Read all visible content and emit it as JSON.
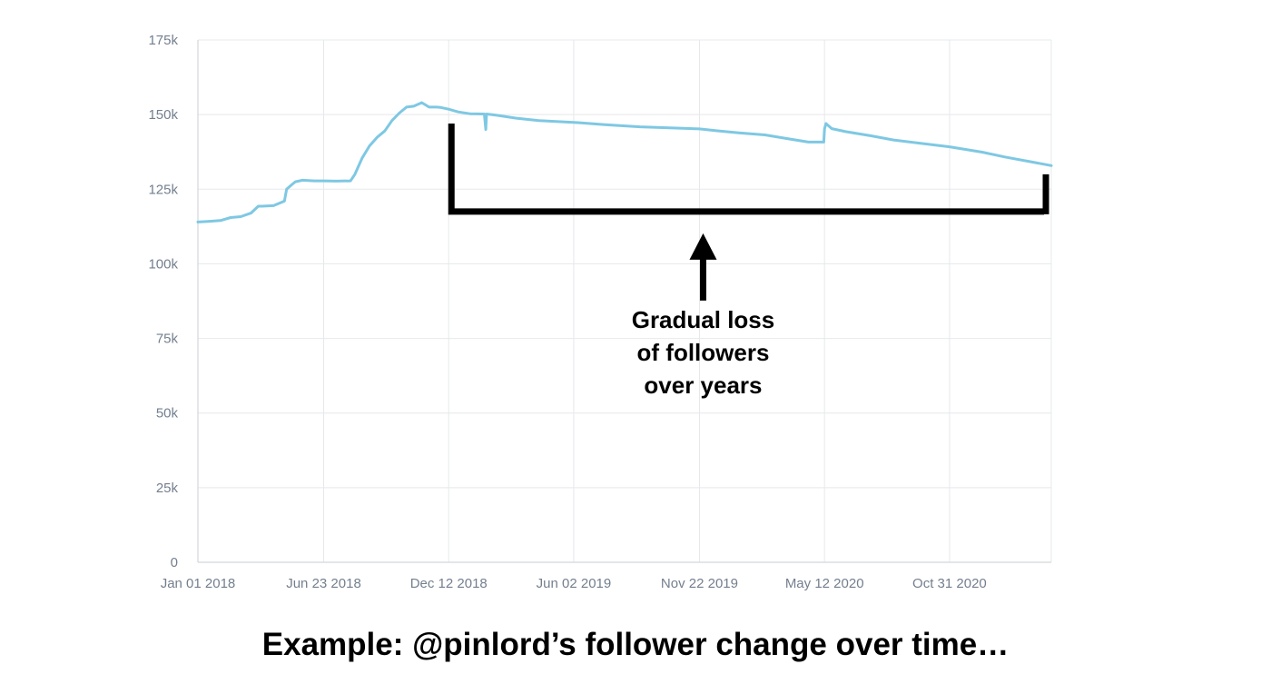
{
  "chart_data": {
    "type": "line",
    "title": "",
    "xlabel": "",
    "ylabel": "",
    "ylim": [
      0,
      175000
    ],
    "y_tick_values": [
      0,
      25000,
      50000,
      75000,
      100000,
      125000,
      150000,
      175000
    ],
    "y_tick_labels": [
      "0",
      "25k",
      "50k",
      "75k",
      "100k",
      "125k",
      "150k",
      "175k"
    ],
    "x_range": [
      "2018-01-01",
      "2021-03-20"
    ],
    "x_tick_values": [
      "2018-01-01",
      "2018-06-23",
      "2018-12-12",
      "2019-06-02",
      "2019-11-22",
      "2020-05-12",
      "2020-10-31"
    ],
    "x_tick_labels": [
      "Jan 01 2018",
      "Jun 23 2018",
      "Dec 12 2018",
      "Jun 02 2019",
      "Nov 22 2019",
      "May 12 2020",
      "Oct 31 2020"
    ],
    "grid": true,
    "line_color": "#7ec8e3",
    "series": [
      {
        "x": [
          "2018-01-01",
          "2018-01-15",
          "2018-02-01",
          "2018-02-15",
          "2018-03-01",
          "2018-03-15",
          "2018-03-25",
          "2018-03-30",
          "2018-04-15",
          "2018-04-30",
          "2018-05-03",
          "2018-05-10",
          "2018-05-15",
          "2018-05-25",
          "2018-06-10",
          "2018-06-23",
          "2018-07-10",
          "2018-07-30",
          "2018-08-05",
          "2018-08-15",
          "2018-08-25",
          "2018-09-05",
          "2018-09-15",
          "2018-09-25",
          "2018-10-05",
          "2018-10-15",
          "2018-10-25",
          "2018-11-05",
          "2018-11-15",
          "2018-11-25",
          "2018-12-01",
          "2018-12-12",
          "2018-12-25",
          "2019-01-10",
          "2019-01-30",
          "2019-02-01",
          "2019-02-02",
          "2019-02-15",
          "2019-03-15",
          "2019-04-15",
          "2019-06-02",
          "2019-07-15",
          "2019-09-01",
          "2019-11-22",
          "2019-12-15",
          "2020-01-15",
          "2020-02-20",
          "2020-03-20",
          "2020-04-20",
          "2020-05-11",
          "2020-05-12",
          "2020-05-14",
          "2020-05-22",
          "2020-06-10",
          "2020-07-15",
          "2020-08-15",
          "2020-10-31",
          "2020-12-15",
          "2021-01-15",
          "2021-02-20",
          "2021-03-20"
        ],
        "y": [
          114000,
          114200,
          114500,
          115500,
          115800,
          117000,
          119300,
          119300,
          119500,
          121000,
          125000,
          126500,
          127500,
          128000,
          127800,
          127800,
          127700,
          127800,
          130000,
          135500,
          139500,
          142500,
          144500,
          148000,
          150500,
          152500,
          152800,
          154000,
          152500,
          152500,
          152400,
          151800,
          150900,
          150300,
          150200,
          145000,
          150200,
          149800,
          148800,
          148000,
          147400,
          146600,
          145900,
          145200,
          144600,
          143900,
          143200,
          142000,
          140800,
          140800,
          145200,
          147000,
          145300,
          144300,
          142900,
          141500,
          139200,
          137400,
          135800,
          134200,
          132900
        ]
      }
    ],
    "annotation": {
      "lines": [
        "Gradual loss",
        "of followers",
        "over years"
      ],
      "bracket_y": 117500,
      "bracket_x_start": "2018-12-12",
      "bracket_x_end": "2021-03-20",
      "arrow_x": "2019-11-22"
    }
  },
  "caption": "Example: @pinlord’s follower change over time…"
}
